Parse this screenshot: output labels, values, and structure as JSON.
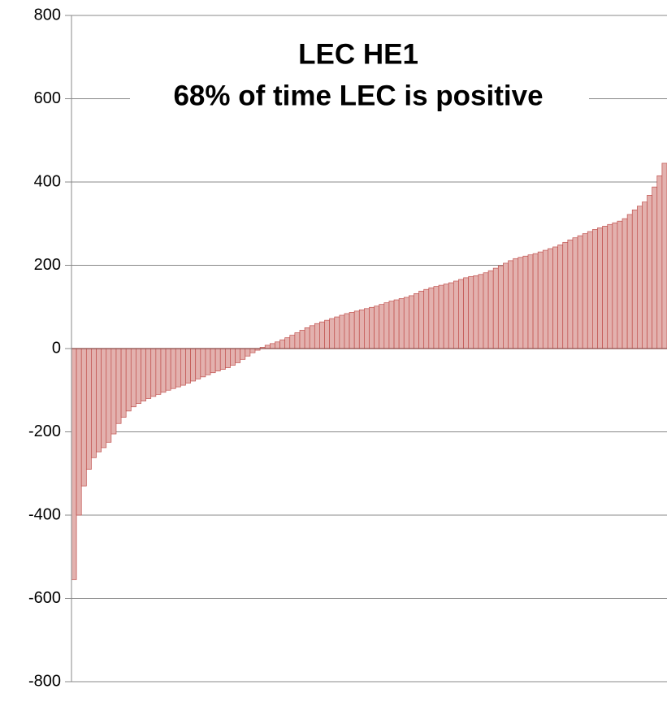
{
  "chart_data": {
    "type": "bar",
    "title": "LEC HE1",
    "subtitle": "68% of time LEC is positive",
    "categories": [
      null,
      null,
      null,
      null,
      null,
      null,
      null,
      null,
      null,
      null,
      null,
      null,
      null,
      null,
      null,
      null,
      null,
      null,
      null,
      null,
      null,
      null,
      null,
      null,
      null,
      null,
      null,
      null,
      null,
      null,
      null,
      null,
      null,
      null,
      null,
      null,
      null,
      null,
      null,
      null,
      null,
      null,
      null,
      null,
      null,
      null,
      null,
      null,
      null,
      null,
      null,
      null,
      null,
      null,
      null,
      null,
      null,
      null,
      null,
      null,
      null,
      null,
      null,
      null,
      null,
      null,
      null,
      null,
      null,
      null,
      null,
      null,
      null,
      null,
      null,
      null,
      null,
      null,
      null,
      null,
      null,
      null,
      null,
      null,
      null,
      null,
      null,
      null,
      null,
      null,
      null,
      null,
      null,
      null,
      null,
      null,
      null,
      null,
      null,
      null,
      null,
      null,
      null,
      null,
      null,
      null,
      null,
      null,
      null,
      null,
      null,
      null,
      null,
      null,
      null,
      null,
      null,
      null,
      null,
      null
    ],
    "values": [
      -555,
      -400,
      -330,
      -290,
      -262,
      -248,
      -238,
      -225,
      -205,
      -180,
      -165,
      -150,
      -140,
      -132,
      -126,
      -120,
      -115,
      -110,
      -105,
      -100,
      -96,
      -92,
      -88,
      -83,
      -78,
      -73,
      -68,
      -63,
      -58,
      -54,
      -50,
      -46,
      -40,
      -34,
      -26,
      -18,
      -10,
      -4,
      3,
      8,
      12,
      16,
      21,
      26,
      32,
      38,
      44,
      50,
      55,
      60,
      64,
      68,
      72,
      76,
      80,
      84,
      87,
      90,
      93,
      96,
      99,
      102,
      106,
      110,
      114,
      117,
      120,
      123,
      127,
      132,
      138,
      142,
      146,
      149,
      152,
      155,
      158,
      162,
      166,
      170,
      173,
      175,
      178,
      182,
      187,
      193,
      199,
      205,
      211,
      216,
      219,
      222,
      225,
      228,
      232,
      236,
      240,
      244,
      249,
      255,
      261,
      266,
      271,
      276,
      281,
      286,
      290,
      294,
      298,
      302,
      306,
      312,
      322,
      333,
      342,
      352,
      368,
      388,
      415,
      445
    ],
    "color": "#e3b1ae",
    "edge_color": "#c0504d",
    "ylim": [
      -800,
      800
    ],
    "yticks": [
      -800,
      -600,
      -400,
      -200,
      0,
      200,
      400,
      600,
      800
    ],
    "grid": true
  }
}
